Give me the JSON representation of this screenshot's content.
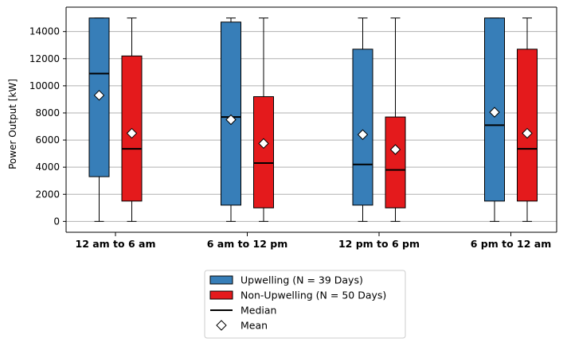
{
  "chart_data": {
    "type": "box",
    "title": "",
    "ylabel": "Power Output [kW]",
    "xlabel": "",
    "ylim": [
      -800,
      15800
    ],
    "yticks": [
      0,
      2000,
      4000,
      6000,
      8000,
      10000,
      12000,
      14000
    ],
    "ytick_labels": [
      "0",
      "2000",
      "4000",
      "6000",
      "8000",
      "10000",
      "12000",
      "14000"
    ],
    "grid": "horizontal",
    "legend_position": "below",
    "categories": [
      "12 am to 6 am",
      "6 am to 12 pm",
      "12 pm to 6 pm",
      "6 pm to 12 am"
    ],
    "series": [
      {
        "name": "Upwelling (N = 39 Days)",
        "color": "#377eb8",
        "boxes": [
          {
            "min": 0,
            "q1": 3300,
            "median": 10900,
            "q3": 15000,
            "max": 15000,
            "mean": 9300
          },
          {
            "min": 0,
            "q1": 1200,
            "median": 7700,
            "q3": 14700,
            "max": 15000,
            "mean": 7500
          },
          {
            "min": 0,
            "q1": 1200,
            "median": 4200,
            "q3": 12700,
            "max": 15000,
            "mean": 6400
          },
          {
            "min": 0,
            "q1": 1500,
            "median": 7100,
            "q3": 15000,
            "max": 15000,
            "mean": 8050
          }
        ]
      },
      {
        "name": "Non-Upwelling (N = 50 Days)",
        "color": "#e41a1c",
        "boxes": [
          {
            "min": 0,
            "q1": 1500,
            "median": 5350,
            "q3": 12200,
            "max": 15000,
            "mean": 6500
          },
          {
            "min": 0,
            "q1": 1000,
            "median": 4300,
            "q3": 9200,
            "max": 15000,
            "mean": 5750
          },
          {
            "min": 0,
            "q1": 1000,
            "median": 3800,
            "q3": 7700,
            "max": 15000,
            "mean": 5300
          },
          {
            "min": 0,
            "q1": 1500,
            "median": 5350,
            "q3": 12700,
            "max": 15000,
            "mean": 6500
          }
        ]
      }
    ],
    "legend": [
      {
        "label": "Upwelling (N = 39 Days)",
        "kind": "patch",
        "color": "#377eb8"
      },
      {
        "label": "Non-Upwelling (N = 50 Days)",
        "kind": "patch",
        "color": "#e41a1c"
      },
      {
        "label": "Median",
        "kind": "line",
        "color": "#000000"
      },
      {
        "label": "Mean",
        "kind": "diamond",
        "color": "#ffffff"
      }
    ]
  }
}
